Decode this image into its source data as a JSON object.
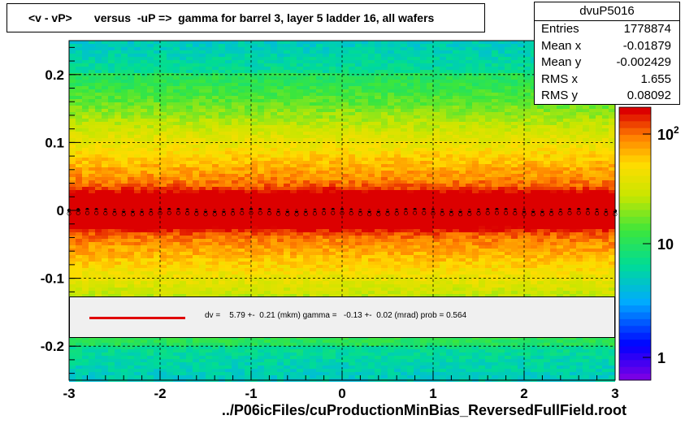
{
  "chart_data": {
    "type": "heatmap",
    "title": "<v - vP>       versus  -uP =>  gamma for barrel 3, layer 5 ladder 16, all wafers",
    "xlabel": "../P06icFiles/cuProductionMinBias_ReversedFullField.root",
    "ylabel": "",
    "xlim": [
      -3,
      3
    ],
    "ylim": [
      -0.25,
      0.25
    ],
    "x_ticks": [
      "-3",
      "-2",
      "-1",
      "0",
      "1",
      "2",
      "3"
    ],
    "y_ticks": [
      "-0.2",
      "-0.1",
      "0",
      "0.1",
      "0.2"
    ],
    "colorbar_ticks": [
      "1",
      "10",
      "10^2"
    ],
    "colorbar_scale": "log",
    "grid": true,
    "stats": {
      "name": "dvuP5016",
      "rows": [
        {
          "label": "Entries",
          "value": "1778874"
        },
        {
          "label": "Mean x",
          "value": "-0.01879"
        },
        {
          "label": "Mean y",
          "value": "-0.002429"
        },
        {
          "label": "RMS x",
          "value": "1.655"
        },
        {
          "label": "RMS y",
          "value": "0.08092"
        }
      ]
    },
    "legend": {
      "placement": "bottom",
      "text": "dv =    5.79 +-  0.21 (mkm) gamma =   -0.13 +-  0.02 (mrad) prob = 0.564",
      "line_color": "#e00000"
    },
    "fit_line": {
      "x": [
        -3,
        3
      ],
      "y": [
        0.0,
        0.0
      ]
    }
  }
}
